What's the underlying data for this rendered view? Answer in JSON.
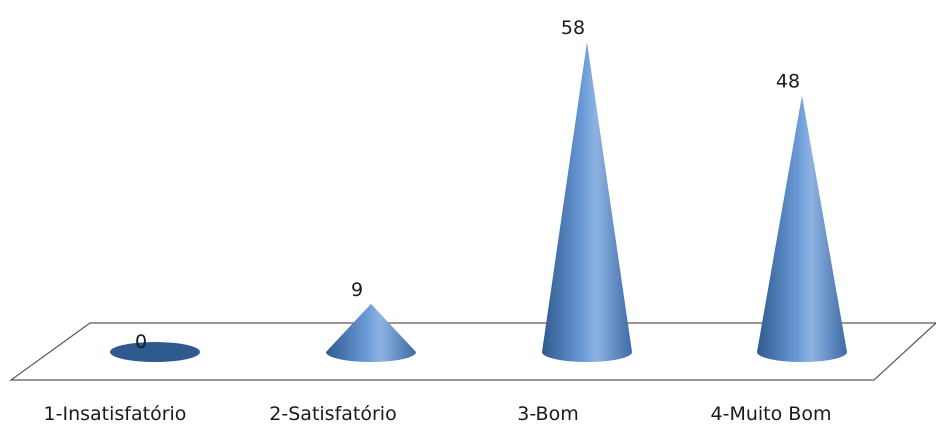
{
  "chart_data": {
    "type": "bar",
    "style": "3d-cone",
    "categories": [
      "1-Insatisfatório",
      "2-Satisfatório",
      "3-Bom",
      "4-Muito Bom"
    ],
    "values": [
      0,
      9,
      58,
      48
    ],
    "data_labels": [
      "0",
      "9",
      "58",
      "48"
    ],
    "title": "",
    "xlabel": "",
    "ylabel": "",
    "ylim": [
      0,
      58
    ],
    "grid": false,
    "legend": "none",
    "colors": {
      "cone_dark": "#2f5a8f",
      "cone_mid": "#4f81bd",
      "cone_light": "#8db3e2",
      "floor_stroke": "#595959"
    }
  }
}
